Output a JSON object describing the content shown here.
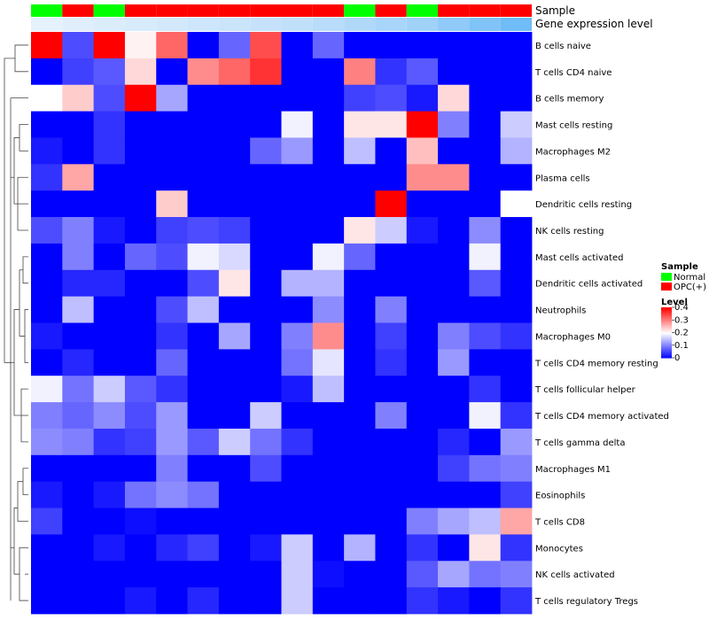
{
  "chart_data": {
    "type": "heatmap",
    "title": "",
    "annotation_labels": {
      "sample": "Sample",
      "expression": "Gene expression level"
    },
    "sample_groups": [
      "Normal",
      "OPC(+)",
      "Normal",
      "OPC(+)",
      "OPC(+)",
      "OPC(+)",
      "OPC(+)",
      "OPC(+)",
      "OPC(+)",
      "OPC(+)",
      "Normal",
      "OPC(+)",
      "Normal",
      "OPC(+)",
      "OPC(+)",
      "OPC(+)"
    ],
    "expression_levels": [
      0.02,
      0.05,
      0.08,
      0.1,
      0.13,
      0.16,
      0.19,
      0.22,
      0.25,
      0.3,
      0.35,
      0.4,
      0.45,
      0.55,
      0.65,
      0.75
    ],
    "rows": [
      "B cells naive",
      "T cells CD4 naive",
      "B cells memory",
      "Mast cells resting",
      "Macrophages M2",
      "Plasma cells",
      "Dendritic cells resting",
      "NK cells resting",
      "Mast cells activated",
      "Dendritic cells activated",
      "Neutrophils",
      "Macrophages M0",
      "T cells CD4 memory resting",
      "T cells follicular helper",
      "T cells CD4 memory activated",
      "T cells gamma delta",
      "Macrophages M1",
      "Eosinophils",
      "T cells CD8",
      "Monocytes",
      "NK cells activated",
      "T cells regulatory  Tregs"
    ],
    "values": [
      [
        0.4,
        0.06,
        0.4,
        0.21,
        0.32,
        0.0,
        0.08,
        0.34,
        0.0,
        0.08,
        0.0,
        0.0,
        0.0,
        0.0,
        0.0,
        0.0
      ],
      [
        0.0,
        0.05,
        0.07,
        0.23,
        0.0,
        0.29,
        0.32,
        0.36,
        0.0,
        0.0,
        0.3,
        0.04,
        0.07,
        0.0,
        0.0,
        0.0
      ],
      [
        0.2,
        0.24,
        0.06,
        0.4,
        0.13,
        0.0,
        0.0,
        0.0,
        0.0,
        0.0,
        0.05,
        0.06,
        0.02,
        0.23,
        0.0,
        0.0
      ],
      [
        0.0,
        0.0,
        0.04,
        0.0,
        0.0,
        0.0,
        0.0,
        0.0,
        0.19,
        0.0,
        0.22,
        0.22,
        0.4,
        0.1,
        0.0,
        0.16
      ],
      [
        0.02,
        0.0,
        0.04,
        0.0,
        0.0,
        0.0,
        0.0,
        0.08,
        0.12,
        0.0,
        0.15,
        0.0,
        0.25,
        0.0,
        0.0,
        0.14
      ],
      [
        0.04,
        0.27,
        0.0,
        0.0,
        0.0,
        0.0,
        0.0,
        0.0,
        0.0,
        0.0,
        0.0,
        0.0,
        0.29,
        0.29,
        0.0,
        0.0
      ],
      [
        0.0,
        0.0,
        0.0,
        0.0,
        0.24,
        0.0,
        0.0,
        0.0,
        0.0,
        0.0,
        0.0,
        0.4,
        0.0,
        0.0,
        0.0,
        0.2
      ],
      [
        0.06,
        0.1,
        0.02,
        0.0,
        0.05,
        0.06,
        0.05,
        0.0,
        0.0,
        0.0,
        0.22,
        0.16,
        0.02,
        0.0,
        0.11,
        0.0
      ],
      [
        0.0,
        0.1,
        0.0,
        0.08,
        0.06,
        0.19,
        0.17,
        0.0,
        0.0,
        0.19,
        0.08,
        0.0,
        0.0,
        0.0,
        0.19,
        0.0
      ],
      [
        0.0,
        0.03,
        0.03,
        0.0,
        0.0,
        0.06,
        0.22,
        0.0,
        0.14,
        0.14,
        0.0,
        0.0,
        0.0,
        0.0,
        0.07,
        0.0
      ],
      [
        0.0,
        0.15,
        0.0,
        0.0,
        0.06,
        0.15,
        0.0,
        0.0,
        0.0,
        0.11,
        0.0,
        0.1,
        0.0,
        0.0,
        0.0,
        0.0
      ],
      [
        0.02,
        0.0,
        0.0,
        0.0,
        0.04,
        0.0,
        0.13,
        0.0,
        0.1,
        0.29,
        0.0,
        0.05,
        0.0,
        0.1,
        0.06,
        0.04
      ],
      [
        0.0,
        0.03,
        0.0,
        0.0,
        0.08,
        0.0,
        0.0,
        0.0,
        0.09,
        0.18,
        0.0,
        0.04,
        0.0,
        0.12,
        0.0,
        0.0
      ],
      [
        0.19,
        0.09,
        0.16,
        0.07,
        0.04,
        0.0,
        0.0,
        0.0,
        0.02,
        0.15,
        0.0,
        0.0,
        0.0,
        0.0,
        0.04,
        0.0
      ],
      [
        0.1,
        0.08,
        0.11,
        0.06,
        0.12,
        0.0,
        0.0,
        0.16,
        0.0,
        0.0,
        0.0,
        0.1,
        0.0,
        0.0,
        0.19,
        0.04
      ],
      [
        0.11,
        0.1,
        0.04,
        0.05,
        0.12,
        0.07,
        0.16,
        0.09,
        0.04,
        0.0,
        0.0,
        0.0,
        0.0,
        0.03,
        0.0,
        0.12
      ],
      [
        0.0,
        0.0,
        0.0,
        0.0,
        0.1,
        0.0,
        0.0,
        0.06,
        0.0,
        0.0,
        0.0,
        0.0,
        0.0,
        0.05,
        0.09,
        0.1
      ],
      [
        0.02,
        0.0,
        0.02,
        0.09,
        0.11,
        0.09,
        0.0,
        0.0,
        0.0,
        0.0,
        0.0,
        0.0,
        0.0,
        0.0,
        0.0,
        0.05
      ],
      [
        0.05,
        0.0,
        0.0,
        0.01,
        0.0,
        0.0,
        0.0,
        0.0,
        0.0,
        0.0,
        0.0,
        0.0,
        0.1,
        0.13,
        0.15,
        0.27
      ],
      [
        0.0,
        0.0,
        0.02,
        0.0,
        0.03,
        0.05,
        0.0,
        0.02,
        0.16,
        0.0,
        0.14,
        0.0,
        0.04,
        0.0,
        0.22,
        0.04
      ],
      [
        0.0,
        0.0,
        0.0,
        0.0,
        0.0,
        0.0,
        0.0,
        0.0,
        0.16,
        0.01,
        0.0,
        0.0,
        0.07,
        0.13,
        0.09,
        0.1
      ],
      [
        0.0,
        0.0,
        0.0,
        0.02,
        0.0,
        0.03,
        0.0,
        0.0,
        0.16,
        0.0,
        0.0,
        0.0,
        0.04,
        0.02,
        0.0,
        0.04
      ]
    ],
    "legend": {
      "sample_title": "Sample",
      "sample_entries": [
        {
          "label": "Normal",
          "color": "#00ff00"
        },
        {
          "label": "OPC(+)",
          "color": "#ff0000"
        }
      ],
      "level_title": "Level",
      "level_ticks": [
        "0.4",
        "0.3",
        "0.2",
        "0.1",
        "0"
      ],
      "level_range": [
        0,
        0.4
      ]
    },
    "colors": {
      "low": "#0000ff",
      "mid": "#ffffff",
      "high": "#ff0000",
      "expr_low": "#e8f2fc",
      "expr_high": "#48aaf4"
    }
  }
}
